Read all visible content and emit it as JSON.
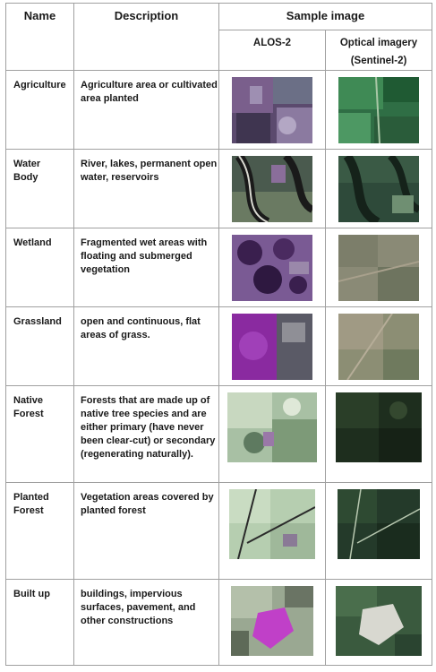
{
  "headers": {
    "name": "Name",
    "description": "Description",
    "sample": "Sample image",
    "alos": "ALOS-2",
    "optical_line1": "Optical imagery",
    "optical_line2": "(Sentinel-2)"
  },
  "rows": [
    {
      "name": "Agriculture",
      "description": "Agriculture area or cultivated area planted"
    },
    {
      "name_line1": "Water",
      "name_line2": "Body",
      "description": "River, lakes, permanent open water, reservoirs"
    },
    {
      "name": "Wetland",
      "description": "Fragmented wet areas with floating and submerged vegetation"
    },
    {
      "name": "Grassland",
      "description": "open and continuous, flat areas of grass."
    },
    {
      "name_line1": "Native",
      "name_line2": "Forest",
      "description": "Forests that are made up of native tree species and are either primary (have never been clear-cut) or secondary (regenerating naturally)."
    },
    {
      "name_line1": "Planted",
      "name_line2": "Forest",
      "description": "Vegetation areas covered by planted forest"
    },
    {
      "name": "Built up",
      "description": "buildings, impervious surfaces, pavement, and other constructions"
    }
  ]
}
